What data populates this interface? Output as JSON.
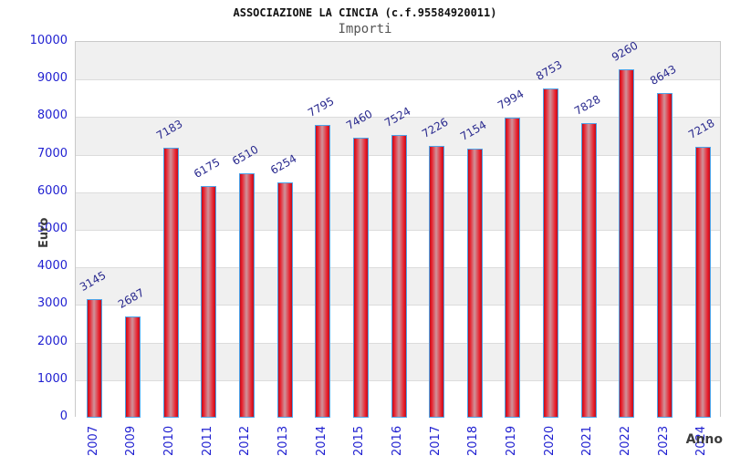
{
  "header": {
    "title": "ASSOCIAZIONE LA CINCIA (c.f.95584920011)",
    "subtitle": "Importi"
  },
  "chart_data": {
    "type": "bar",
    "title": "ASSOCIAZIONE LA CINCIA (c.f.95584920011)",
    "subtitle": "Importi",
    "xlabel": "Anno",
    "ylabel": "Euro",
    "categories": [
      "2007",
      "2009",
      "2010",
      "2011",
      "2012",
      "2013",
      "2014",
      "2015",
      "2016",
      "2017",
      "2018",
      "2019",
      "2020",
      "2021",
      "2022",
      "2023",
      "2024"
    ],
    "values": [
      3145,
      2687,
      7183,
      6175,
      6510,
      6254,
      7795,
      7460,
      7524,
      7226,
      7154,
      7994,
      8753,
      7828,
      9260,
      8643,
      7218
    ],
    "ylim": [
      0,
      10000
    ],
    "ytick_step": 1000,
    "legend": "none",
    "grid": "horizontal-bands-alternating",
    "value_labels": "rotated above bars",
    "colors": {
      "bar_fill_red": "#e81c29",
      "bar_fill_dark": "#bb0f1d",
      "bar_highlight": "#cf939b",
      "bar_border": "#4da3e8",
      "axis_tick_text": "#2121d1",
      "value_label_text": "#29298e",
      "band_gray": "#f0f0f0",
      "band_white": "#ffffff",
      "gridline": "#dcdcdc",
      "title_text": "#111111",
      "subtitle_text": "#555555",
      "axis_title_text": "#3d3d3d"
    }
  }
}
